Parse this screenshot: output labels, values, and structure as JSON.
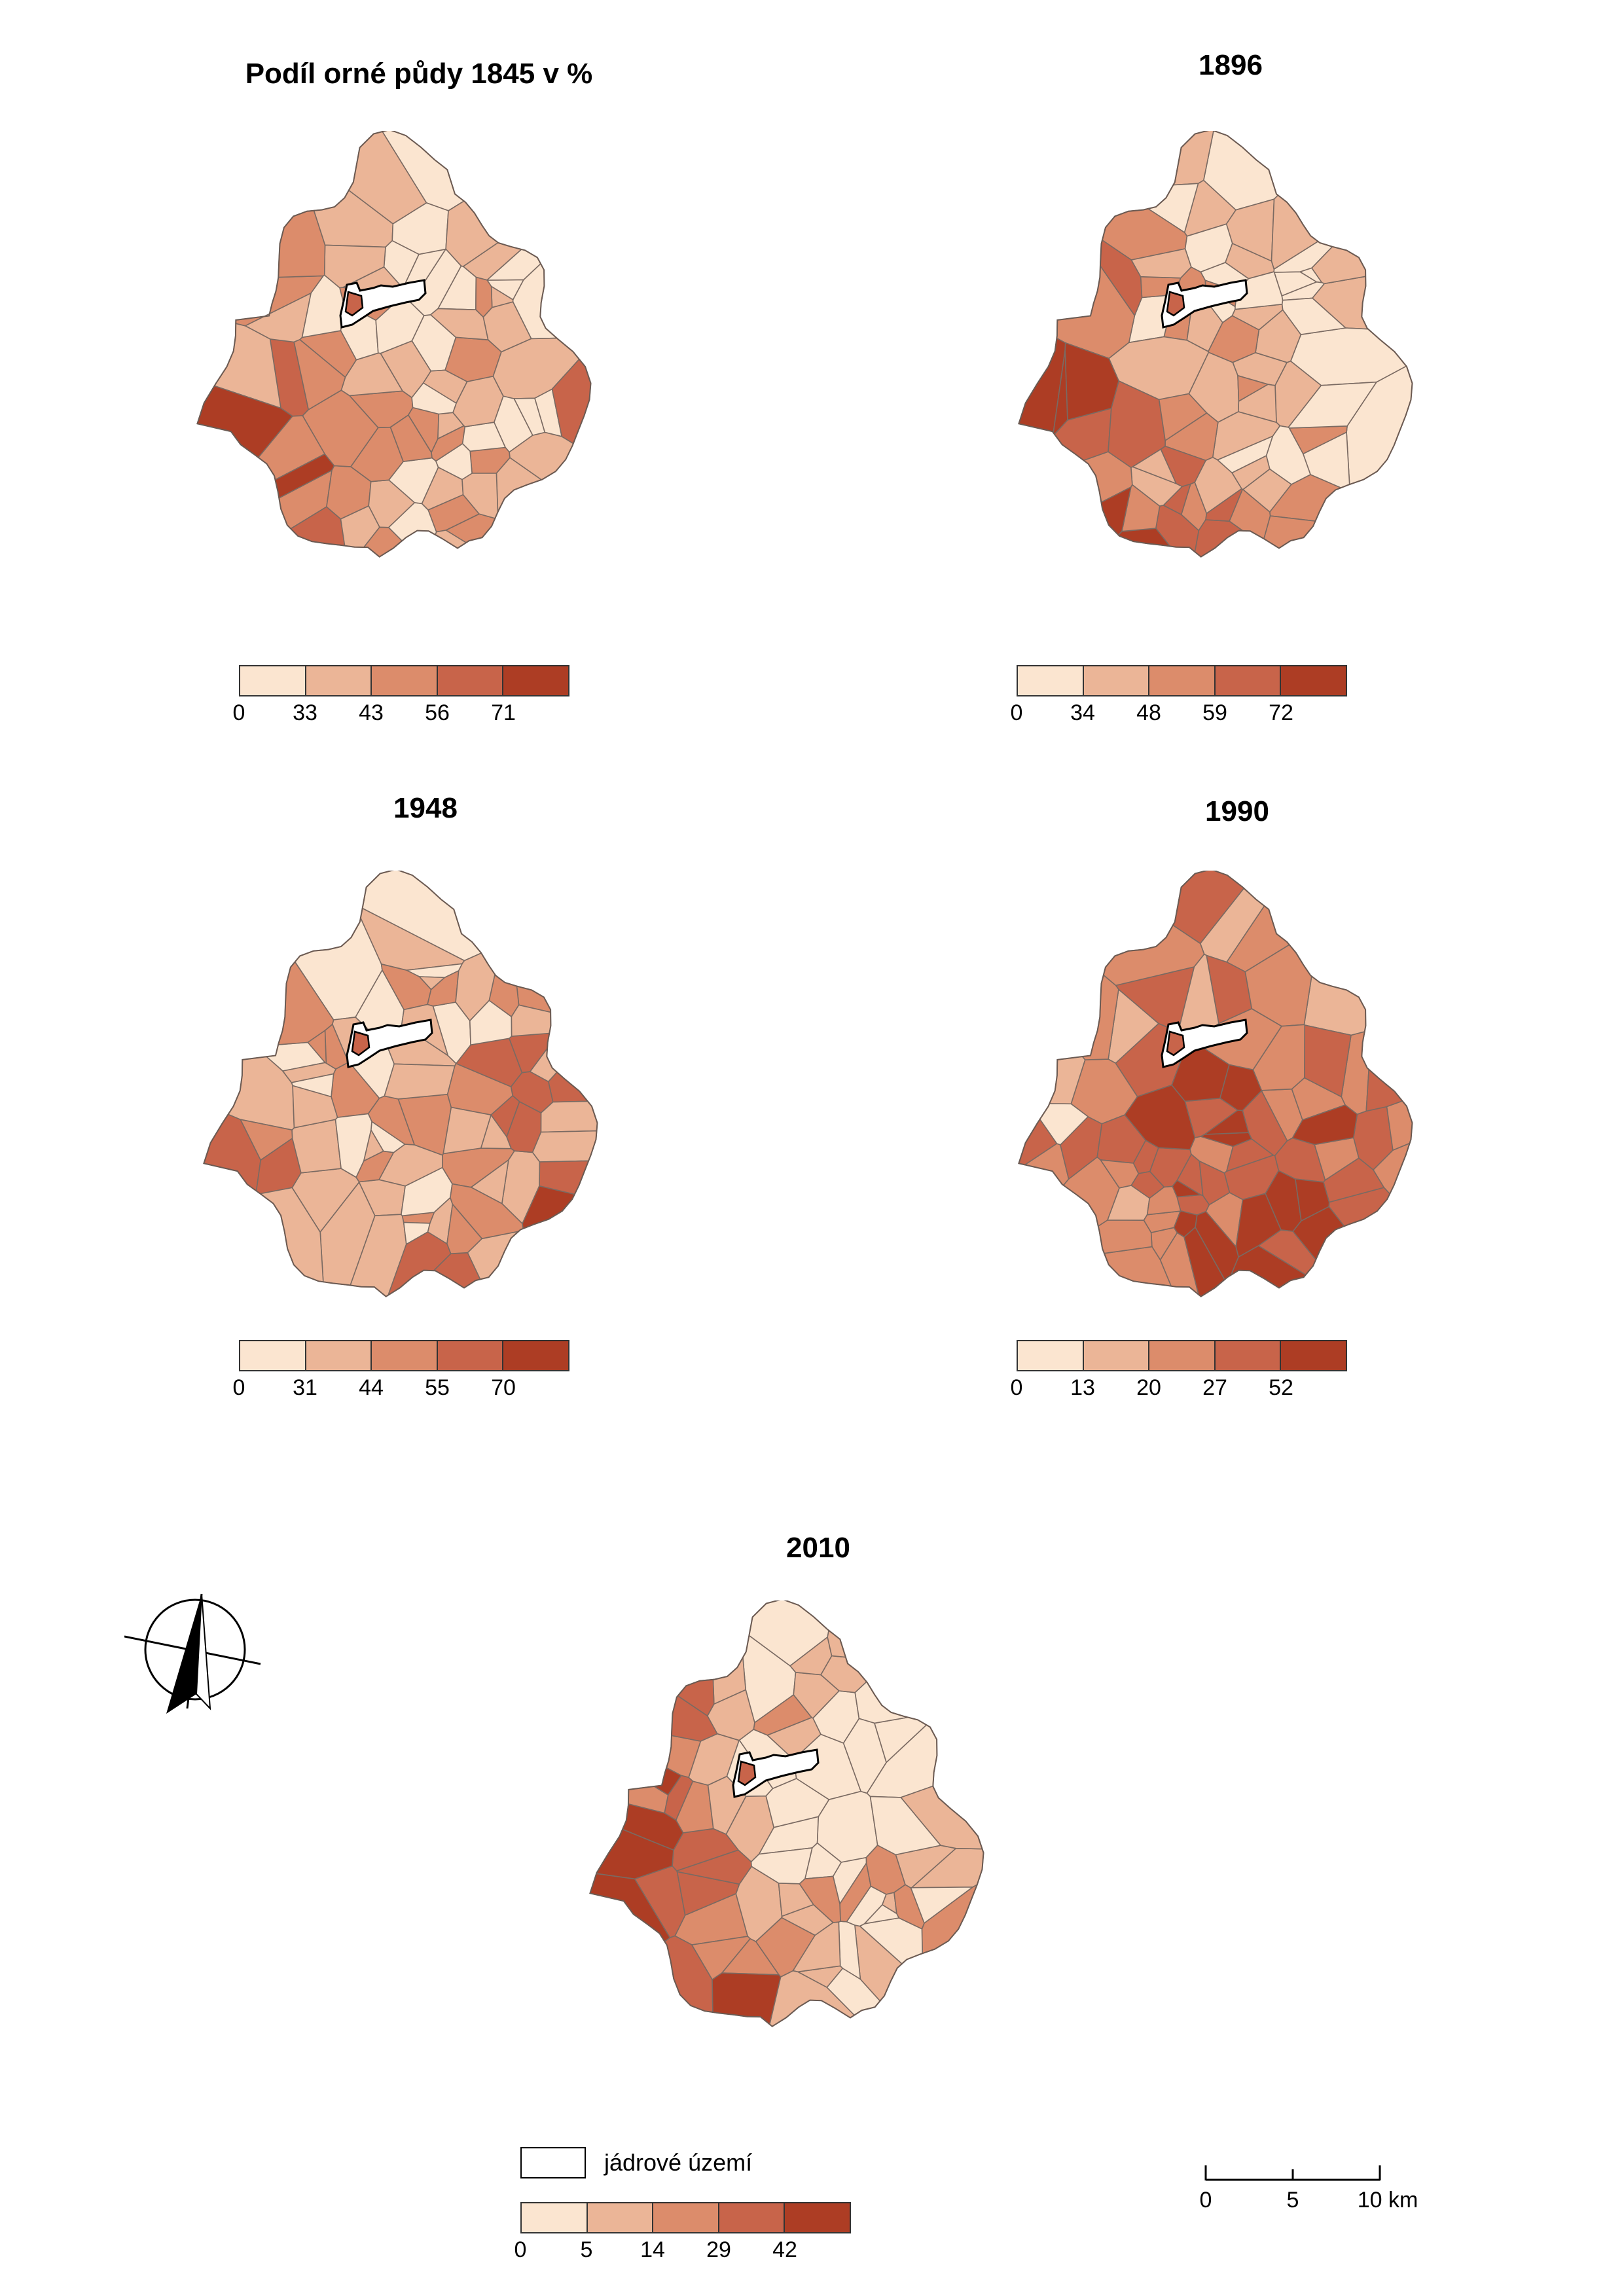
{
  "colors": [
    "#fbe5d0",
    "#ebb597",
    "#dc8c6b",
    "#c8644a",
    "#ad3d24"
  ],
  "panels": [
    {
      "id": "p1845",
      "title": "Podíl orné půdy 1845 v %",
      "breaks": [
        "0",
        "33",
        "43",
        "56",
        "71"
      ],
      "seed": 11
    },
    {
      "id": "p1896",
      "title": "1896",
      "breaks": [
        "0",
        "34",
        "48",
        "59",
        "72"
      ],
      "seed": 23
    },
    {
      "id": "p1948",
      "title": "1948",
      "breaks": [
        "0",
        "31",
        "44",
        "55",
        "70"
      ],
      "seed": 37
    },
    {
      "id": "p1990",
      "title": "1990",
      "breaks": [
        "0",
        "13",
        "20",
        "27",
        "52"
      ],
      "seed": 51
    },
    {
      "id": "p2010",
      "title": "2010",
      "breaks": [
        "0",
        "5",
        "14",
        "29",
        "42"
      ],
      "seed": 67
    }
  ],
  "core_legend": {
    "label": "jádrové území",
    "icon": "core-area-box"
  },
  "scale_bar": {
    "ticks": [
      "0",
      "5",
      "10 km"
    ]
  },
  "north_arrow": {
    "icon": "north-arrow-icon"
  }
}
